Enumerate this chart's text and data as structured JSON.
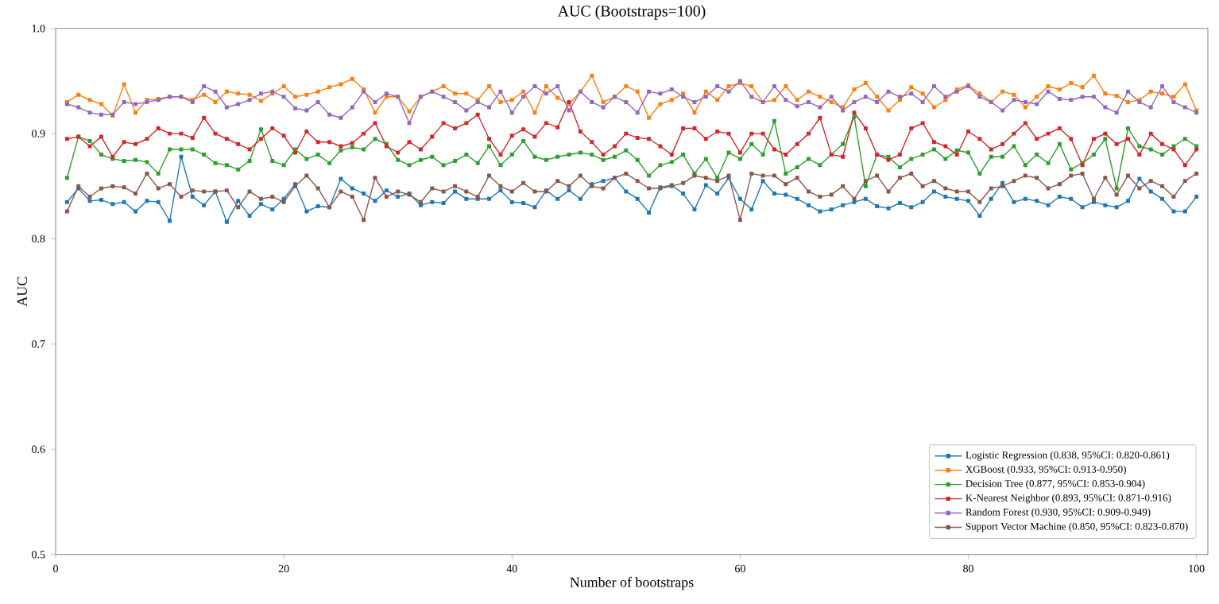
{
  "chart_data": {
    "type": "line",
    "title": "AUC (Bootstraps=100)",
    "xlabel": "Number of bootstraps",
    "ylabel": "AUC",
    "x": [
      1,
      2,
      3,
      4,
      5,
      6,
      7,
      8,
      9,
      10,
      11,
      12,
      13,
      14,
      15,
      16,
      17,
      18,
      19,
      20,
      21,
      22,
      23,
      24,
      25,
      26,
      27,
      28,
      29,
      30,
      31,
      32,
      33,
      34,
      35,
      36,
      37,
      38,
      39,
      40,
      41,
      42,
      43,
      44,
      45,
      46,
      47,
      48,
      49,
      50,
      51,
      52,
      53,
      54,
      55,
      56,
      57,
      58,
      59,
      60,
      61,
      62,
      63,
      64,
      65,
      66,
      67,
      68,
      69,
      70,
      71,
      72,
      73,
      74,
      75,
      76,
      77,
      78,
      79,
      80,
      81,
      82,
      83,
      84,
      85,
      86,
      87,
      88,
      89,
      90,
      91,
      92,
      93,
      94,
      95,
      96,
      97,
      98,
      99,
      100
    ],
    "xlim": [
      0,
      101
    ],
    "xticks": [
      0,
      20,
      40,
      60,
      80,
      100
    ],
    "ylim": [
      0.5,
      1.0
    ],
    "yticks": [
      {
        "value": 0.5,
        "label": "0.5"
      },
      {
        "value": 0.6,
        "label": "0.6"
      },
      {
        "value": 0.7,
        "label": "0.7"
      },
      {
        "value": 0.8,
        "label": "0.8"
      },
      {
        "value": 0.9,
        "label": "0.9"
      },
      {
        "value": 1.0,
        "label": "1.0"
      }
    ],
    "marker": "square",
    "line_style": "solid",
    "legend": "bottom right",
    "series": [
      {
        "name": "Logistic Regression (0.838, 95%CI: 0.820-0.861)",
        "color": "#1f77b4",
        "values": [
          0.835,
          0.848,
          0.836,
          0.837,
          0.833,
          0.835,
          0.826,
          0.836,
          0.835,
          0.817,
          0.878,
          0.84,
          0.832,
          0.845,
          0.816,
          0.836,
          0.822,
          0.833,
          0.828,
          0.838,
          0.852,
          0.826,
          0.831,
          0.83,
          0.857,
          0.848,
          0.843,
          0.836,
          0.846,
          0.84,
          0.843,
          0.832,
          0.835,
          0.834,
          0.845,
          0.838,
          0.838,
          0.838,
          0.846,
          0.835,
          0.834,
          0.83,
          0.846,
          0.838,
          0.846,
          0.838,
          0.852,
          0.855,
          0.858,
          0.845,
          0.838,
          0.825,
          0.849,
          0.851,
          0.843,
          0.828,
          0.851,
          0.843,
          0.858,
          0.838,
          0.828,
          0.855,
          0.843,
          0.842,
          0.838,
          0.832,
          0.826,
          0.828,
          0.832,
          0.835,
          0.838,
          0.831,
          0.829,
          0.834,
          0.83,
          0.835,
          0.845,
          0.84,
          0.838,
          0.836,
          0.822,
          0.838,
          0.853,
          0.835,
          0.838,
          0.836,
          0.832,
          0.84,
          0.838,
          0.83,
          0.835,
          0.832,
          0.83,
          0.836,
          0.857,
          0.845,
          0.838,
          0.826,
          0.826,
          0.84
        ]
      },
      {
        "name": "XGBoost (0.933, 95%CI: 0.913-0.950)",
        "color": "#ff7f0e",
        "values": [
          0.93,
          0.937,
          0.932,
          0.928,
          0.917,
          0.947,
          0.92,
          0.932,
          0.933,
          0.935,
          0.935,
          0.932,
          0.937,
          0.93,
          0.94,
          0.938,
          0.937,
          0.931,
          0.938,
          0.945,
          0.935,
          0.937,
          0.94,
          0.944,
          0.947,
          0.952,
          0.942,
          0.92,
          0.935,
          0.935,
          0.921,
          0.935,
          0.94,
          0.945,
          0.938,
          0.938,
          0.932,
          0.945,
          0.93,
          0.932,
          0.94,
          0.92,
          0.945,
          0.934,
          0.928,
          0.94,
          0.955,
          0.93,
          0.935,
          0.945,
          0.94,
          0.915,
          0.928,
          0.932,
          0.938,
          0.92,
          0.94,
          0.932,
          0.945,
          0.948,
          0.945,
          0.93,
          0.932,
          0.945,
          0.932,
          0.94,
          0.935,
          0.93,
          0.925,
          0.942,
          0.948,
          0.935,
          0.922,
          0.932,
          0.944,
          0.938,
          0.925,
          0.932,
          0.942,
          0.946,
          0.938,
          0.93,
          0.94,
          0.937,
          0.925,
          0.935,
          0.945,
          0.942,
          0.948,
          0.944,
          0.955,
          0.938,
          0.936,
          0.93,
          0.932,
          0.94,
          0.938,
          0.935,
          0.947,
          0.922
        ]
      },
      {
        "name": "Decision Tree (0.877, 95%CI: 0.853-0.904)",
        "color": "#2ca02c",
        "values": [
          0.858,
          0.897,
          0.893,
          0.88,
          0.876,
          0.874,
          0.875,
          0.873,
          0.862,
          0.885,
          0.885,
          0.885,
          0.88,
          0.872,
          0.87,
          0.866,
          0.874,
          0.904,
          0.874,
          0.87,
          0.885,
          0.876,
          0.88,
          0.872,
          0.884,
          0.887,
          0.885,
          0.895,
          0.89,
          0.875,
          0.87,
          0.875,
          0.878,
          0.87,
          0.874,
          0.88,
          0.872,
          0.888,
          0.87,
          0.88,
          0.893,
          0.878,
          0.875,
          0.878,
          0.88,
          0.882,
          0.88,
          0.875,
          0.878,
          0.884,
          0.875,
          0.86,
          0.87,
          0.873,
          0.88,
          0.862,
          0.876,
          0.858,
          0.882,
          0.876,
          0.89,
          0.88,
          0.912,
          0.862,
          0.868,
          0.876,
          0.87,
          0.88,
          0.89,
          0.916,
          0.85,
          0.88,
          0.878,
          0.868,
          0.876,
          0.88,
          0.885,
          0.876,
          0.884,
          0.882,
          0.862,
          0.878,
          0.878,
          0.888,
          0.87,
          0.88,
          0.872,
          0.89,
          0.866,
          0.872,
          0.88,
          0.895,
          0.848,
          0.905,
          0.888,
          0.885,
          0.88,
          0.888,
          0.895,
          0.888
        ]
      },
      {
        "name": "K-Nearest Neighbor (0.893, 95%CI: 0.871-0.916)",
        "color": "#d62728",
        "values": [
          0.895,
          0.897,
          0.888,
          0.897,
          0.878,
          0.892,
          0.89,
          0.895,
          0.905,
          0.9,
          0.9,
          0.896,
          0.915,
          0.9,
          0.895,
          0.89,
          0.885,
          0.895,
          0.905,
          0.898,
          0.882,
          0.902,
          0.892,
          0.892,
          0.888,
          0.891,
          0.9,
          0.91,
          0.888,
          0.882,
          0.892,
          0.885,
          0.897,
          0.91,
          0.905,
          0.91,
          0.918,
          0.895,
          0.88,
          0.898,
          0.904,
          0.897,
          0.91,
          0.906,
          0.93,
          0.902,
          0.892,
          0.88,
          0.888,
          0.9,
          0.896,
          0.895,
          0.888,
          0.88,
          0.905,
          0.905,
          0.895,
          0.902,
          0.9,
          0.882,
          0.9,
          0.9,
          0.885,
          0.88,
          0.89,
          0.9,
          0.915,
          0.88,
          0.878,
          0.92,
          0.905,
          0.88,
          0.875,
          0.88,
          0.905,
          0.91,
          0.892,
          0.888,
          0.88,
          0.902,
          0.895,
          0.885,
          0.89,
          0.9,
          0.91,
          0.895,
          0.9,
          0.905,
          0.895,
          0.87,
          0.895,
          0.9,
          0.89,
          0.895,
          0.88,
          0.9,
          0.89,
          0.885,
          0.87,
          0.885
        ]
      },
      {
        "name": "Random Forest (0.930, 95%CI: 0.909-0.949)",
        "color": "#9467bd",
        "values": [
          0.928,
          0.925,
          0.92,
          0.918,
          0.918,
          0.93,
          0.928,
          0.93,
          0.932,
          0.935,
          0.935,
          0.93,
          0.945,
          0.94,
          0.925,
          0.928,
          0.932,
          0.938,
          0.94,
          0.935,
          0.924,
          0.922,
          0.93,
          0.918,
          0.915,
          0.925,
          0.94,
          0.93,
          0.938,
          0.935,
          0.91,
          0.935,
          0.94,
          0.935,
          0.93,
          0.922,
          0.93,
          0.925,
          0.94,
          0.92,
          0.935,
          0.945,
          0.938,
          0.945,
          0.922,
          0.94,
          0.93,
          0.925,
          0.935,
          0.93,
          0.92,
          0.94,
          0.938,
          0.942,
          0.935,
          0.93,
          0.935,
          0.945,
          0.94,
          0.95,
          0.935,
          0.93,
          0.945,
          0.932,
          0.926,
          0.93,
          0.925,
          0.935,
          0.922,
          0.93,
          0.935,
          0.93,
          0.94,
          0.935,
          0.938,
          0.93,
          0.945,
          0.935,
          0.94,
          0.945,
          0.935,
          0.93,
          0.922,
          0.932,
          0.93,
          0.928,
          0.94,
          0.933,
          0.932,
          0.935,
          0.935,
          0.925,
          0.92,
          0.94,
          0.93,
          0.925,
          0.945,
          0.93,
          0.925,
          0.92
        ]
      },
      {
        "name": "Support Vector Machine (0.850, 95%CI: 0.823-0.870)",
        "color": "#8c564b",
        "values": [
          0.826,
          0.85,
          0.84,
          0.848,
          0.85,
          0.849,
          0.843,
          0.862,
          0.848,
          0.852,
          0.84,
          0.846,
          0.845,
          0.845,
          0.846,
          0.83,
          0.845,
          0.838,
          0.84,
          0.835,
          0.85,
          0.86,
          0.848,
          0.83,
          0.845,
          0.84,
          0.818,
          0.858,
          0.84,
          0.845,
          0.842,
          0.835,
          0.848,
          0.845,
          0.85,
          0.845,
          0.84,
          0.86,
          0.85,
          0.845,
          0.853,
          0.845,
          0.845,
          0.855,
          0.85,
          0.86,
          0.85,
          0.848,
          0.858,
          0.862,
          0.855,
          0.848,
          0.848,
          0.85,
          0.853,
          0.86,
          0.858,
          0.855,
          0.86,
          0.818,
          0.862,
          0.86,
          0.86,
          0.852,
          0.858,
          0.845,
          0.84,
          0.842,
          0.85,
          0.838,
          0.855,
          0.86,
          0.845,
          0.858,
          0.862,
          0.85,
          0.855,
          0.848,
          0.845,
          0.845,
          0.835,
          0.848,
          0.85,
          0.855,
          0.86,
          0.858,
          0.848,
          0.852,
          0.86,
          0.862,
          0.838,
          0.858,
          0.842,
          0.86,
          0.848,
          0.855,
          0.85,
          0.84,
          0.855,
          0.862
        ]
      }
    ]
  }
}
